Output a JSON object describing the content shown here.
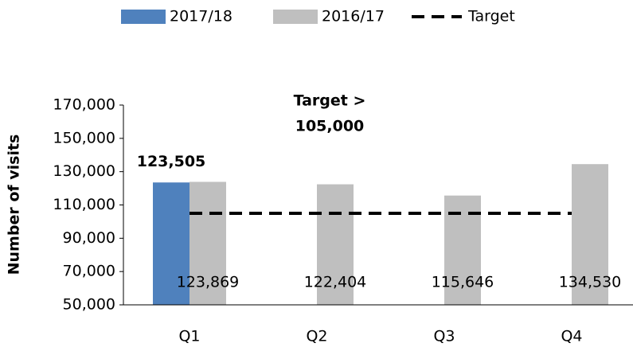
{
  "chart_data": {
    "type": "bar",
    "annotation": [
      "Target >",
      "105,000"
    ],
    "y_label": "Number of visits",
    "categories": [
      "Q1",
      "Q2",
      "Q3",
      "Q4"
    ],
    "series": [
      {
        "name": "2017/18",
        "color": "#4f81bd",
        "values": [
          123505,
          null,
          null,
          null
        ],
        "value_labels": [
          "123,505",
          null,
          null,
          null
        ]
      },
      {
        "name": "2016/17",
        "color": "#bfbfbf",
        "values": [
          123869,
          122404,
          115646,
          134530
        ],
        "value_labels": [
          "123,869",
          "122,404",
          "115,646",
          "134,530"
        ]
      },
      {
        "name": "Target",
        "color": "#000000",
        "type": "line",
        "values": [
          105000,
          105000,
          105000,
          105000
        ]
      }
    ],
    "ylim": [
      50000,
      170000
    ],
    "yticks": [
      {
        "value": 50000,
        "label": "50,000"
      },
      {
        "value": 70000,
        "label": "70,000"
      },
      {
        "value": 90000,
        "label": "90,000"
      },
      {
        "value": 110000,
        "label": "110,000"
      },
      {
        "value": 130000,
        "label": "130,000"
      },
      {
        "value": 150000,
        "label": "150,000"
      },
      {
        "value": 170000,
        "label": "170,000"
      }
    ],
    "legend": "top"
  }
}
